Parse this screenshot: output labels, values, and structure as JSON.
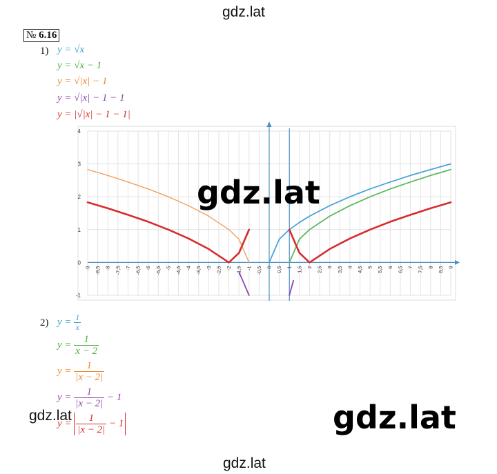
{
  "watermarks": {
    "top": "gdz.lat",
    "middle": "gdz.lat",
    "left": "gdz.lat",
    "bottom_right": "gdz.lat",
    "bottom": "gdz.lat"
  },
  "problem": {
    "number_prefix": "№",
    "number": "6.16"
  },
  "part1": {
    "label": "1)",
    "equations": [
      {
        "lhs": "y =",
        "rhs": "√x",
        "color": "#3aa0d6"
      },
      {
        "lhs": "y =",
        "rhs": "√x − 1",
        "color": "#4cae3c"
      },
      {
        "lhs": "y =",
        "rhs": "√|x| − 1",
        "color": "#e8892a"
      },
      {
        "lhs": "y =",
        "rhs": "√|x| − 1 − 1",
        "color": "#8e44ad"
      },
      {
        "lhs": "y =",
        "rhs": "|√|x| − 1 − 1|",
        "color": "#d62c2c"
      }
    ]
  },
  "part2": {
    "label": "2)",
    "eq1": {
      "lhs": "y =",
      "num": "1",
      "den": "x",
      "color": "#3aa0d6"
    },
    "eq2": {
      "lhs": "y =",
      "num": "1",
      "den": "x − 2",
      "color": "#4cae3c"
    },
    "eq3": {
      "lhs": "y =",
      "num": "1",
      "den": "|x − 2|",
      "color": "#e8892a"
    },
    "eq4": {
      "lhs": "y =",
      "num": "1",
      "den": "|x − 2|",
      "tail": "− 1",
      "color": "#8e44ad"
    },
    "eq5": {
      "lhs": "y =",
      "num": "1",
      "den": "|x − 2|",
      "tail": "− 1",
      "color": "#d62c2c"
    }
  },
  "chart_data": {
    "type": "line",
    "xlim": [
      -9,
      9
    ],
    "ylim": [
      -1,
      4
    ],
    "grid": true,
    "x_ticks": [
      "-9",
      "-8,5",
      "-8",
      "-7,5",
      "-7",
      "-6,5",
      "-6",
      "-5,5",
      "-5",
      "-4,5",
      "-4",
      "-3,5",
      "-3",
      "-2,5",
      "-2",
      "-1,5",
      "-1",
      "-0,5",
      "0",
      "0,5",
      "1",
      "1,5",
      "2",
      "2,5",
      "3",
      "3,5",
      "4",
      "4,5",
      "5",
      "5,5",
      "6",
      "6,5",
      "7",
      "7,5",
      "8",
      "8,5",
      "9"
    ],
    "y_ticks": [
      "-1",
      "0",
      "1",
      "2",
      "3",
      "4"
    ],
    "series": [
      {
        "color": "#4aa3d8",
        "points": [
          [
            0,
            0
          ],
          [
            0.5,
            0.71
          ],
          [
            1,
            1
          ],
          [
            1.5,
            1.22
          ],
          [
            2,
            1.41
          ],
          [
            3,
            1.73
          ],
          [
            4,
            2
          ],
          [
            5,
            2.24
          ],
          [
            6,
            2.45
          ],
          [
            7,
            2.65
          ],
          [
            8,
            2.83
          ],
          [
            9,
            3
          ]
        ]
      },
      {
        "color": "#5cb85c",
        "points": [
          [
            1,
            0
          ],
          [
            1.5,
            0.71
          ],
          [
            2,
            1
          ],
          [
            3,
            1.41
          ],
          [
            4,
            1.73
          ],
          [
            5,
            2
          ],
          [
            6,
            2.24
          ],
          [
            7,
            2.45
          ],
          [
            8,
            2.65
          ],
          [
            9,
            2.83
          ]
        ]
      },
      {
        "color": "#f0a060",
        "points": [
          [
            -9,
            2.83
          ],
          [
            -8,
            2.65
          ],
          [
            -7,
            2.45
          ],
          [
            -6,
            2.24
          ],
          [
            -5,
            2
          ],
          [
            -4,
            1.73
          ],
          [
            -3,
            1.41
          ],
          [
            -2,
            1
          ],
          [
            -1.5,
            0.71
          ],
          [
            -1,
            0
          ]
        ]
      },
      {
        "color": "#8e44ad",
        "points": [
          [
            -1.5,
            -0.29
          ],
          [
            -1,
            -1
          ]
        ]
      },
      {
        "color": "#8e44ad",
        "points": [
          [
            1,
            -1
          ],
          [
            1.2,
            -0.55
          ]
        ]
      },
      {
        "color": "#d62c2c",
        "points": [
          [
            -9,
            1.83
          ],
          [
            -8,
            1.65
          ],
          [
            -7,
            1.45
          ],
          [
            -6,
            1.24
          ],
          [
            -5,
            1
          ],
          [
            -4,
            0.73
          ],
          [
            -3,
            0.41
          ],
          [
            -2,
            0
          ],
          [
            -1.5,
            0.29
          ],
          [
            -1,
            1
          ]
        ]
      },
      {
        "color": "#d62c2c",
        "points": [
          [
            1,
            1
          ],
          [
            1.5,
            0.29
          ],
          [
            2,
            0
          ],
          [
            3,
            0.41
          ],
          [
            4,
            0.73
          ],
          [
            5,
            1
          ],
          [
            6,
            1.24
          ],
          [
            7,
            1.45
          ],
          [
            8,
            1.65
          ],
          [
            9,
            1.83
          ]
        ]
      }
    ]
  }
}
